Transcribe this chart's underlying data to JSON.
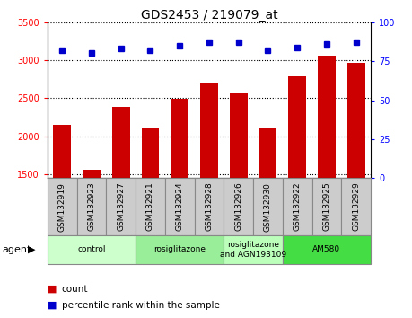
{
  "title": "GDS2453 / 219079_at",
  "samples": [
    "GSM132919",
    "GSM132923",
    "GSM132927",
    "GSM132921",
    "GSM132924",
    "GSM132928",
    "GSM132926",
    "GSM132930",
    "GSM132922",
    "GSM132925",
    "GSM132929"
  ],
  "counts": [
    2150,
    1560,
    2390,
    2100,
    2490,
    2700,
    2570,
    2110,
    2790,
    3060,
    2970
  ],
  "percentile_ranks": [
    82,
    80,
    83,
    82,
    85,
    87,
    87,
    82,
    84,
    86,
    87
  ],
  "ylim_left": [
    1450,
    3500
  ],
  "ylim_right": [
    0,
    100
  ],
  "yticks_left": [
    1500,
    2000,
    2500,
    3000,
    3500
  ],
  "yticks_right": [
    0,
    25,
    50,
    75,
    100
  ],
  "bar_color": "#cc0000",
  "dot_color": "#0000cc",
  "bar_width": 0.6,
  "groups": [
    {
      "label": "control",
      "start": 0,
      "end": 2,
      "color": "#ccffcc"
    },
    {
      "label": "rosiglitazone",
      "start": 3,
      "end": 5,
      "color": "#99ee99"
    },
    {
      "label": "rosiglitazone\nand AGN193109",
      "start": 6,
      "end": 7,
      "color": "#bbffbb"
    },
    {
      "label": "AM580",
      "start": 8,
      "end": 10,
      "color": "#44dd44"
    }
  ],
  "legend_count_label": "count",
  "legend_percentile_label": "percentile rank within the sample",
  "tick_label_fontsize": 6.5,
  "title_fontsize": 10,
  "sample_box_color": "#cccccc",
  "sample_box_edge": "#888888"
}
